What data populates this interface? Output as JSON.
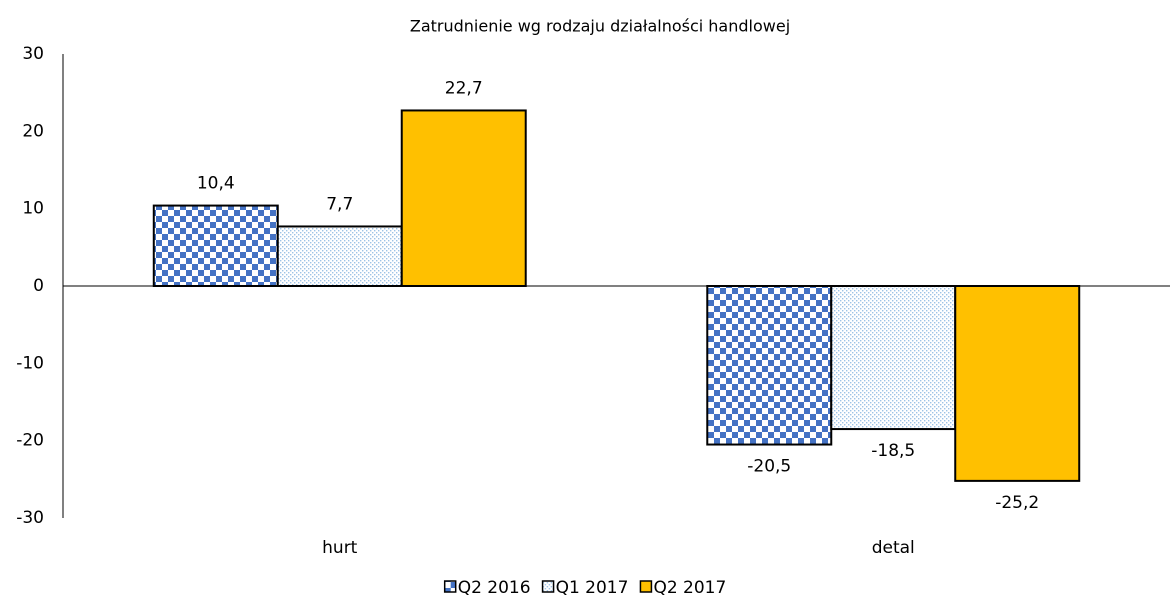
{
  "chart_data": {
    "type": "bar",
    "title": "Zatrudnienie wg rodzaju działalności handlowej",
    "categories": [
      "hurt",
      "detal"
    ],
    "series": [
      {
        "name": "Q2 2016",
        "color": "#4472c4",
        "fill_pattern": "checkerboard",
        "values": [
          10.4,
          -20.5
        ],
        "value_labels": [
          "10,4",
          "-20,5"
        ]
      },
      {
        "name": "Q1 2017",
        "color": "#9dc3e6",
        "fill_pattern": "dots",
        "values": [
          7.7,
          -18.5
        ],
        "value_labels": [
          "7,7",
          "-18,5"
        ]
      },
      {
        "name": "Q2 2017",
        "color": "#ffc000",
        "values": [
          22.7,
          -25.2
        ],
        "value_labels": [
          "22,7",
          "-25,2"
        ]
      }
    ],
    "ylim": [
      -30,
      30
    ],
    "yticks": [
      -30,
      -20,
      -10,
      0,
      10,
      20,
      30
    ],
    "legend": "bottom"
  }
}
